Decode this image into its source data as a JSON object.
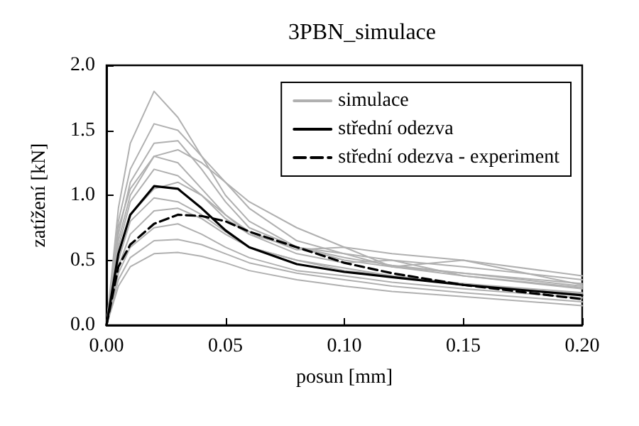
{
  "chart_data": {
    "type": "line",
    "title": "3PBN_simulace",
    "xlabel": "posun [mm]",
    "ylabel": "zatížení [kN]",
    "x": [
      0,
      0.005,
      0.01,
      0.02,
      0.03,
      0.04,
      0.05,
      0.06,
      0.08,
      0.1,
      0.12,
      0.15,
      0.2
    ],
    "xlim": [
      0,
      0.2
    ],
    "ylim": [
      0,
      2
    ],
    "xticks": [
      {
        "value": 0,
        "label": "0.00"
      },
      {
        "value": 0.05,
        "label": "0.05"
      },
      {
        "value": 0.1,
        "label": "0.10"
      },
      {
        "value": 0.15,
        "label": "0.15"
      },
      {
        "value": 0.2,
        "label": "0.20"
      }
    ],
    "yticks": [
      {
        "value": 0,
        "label": "0.0"
      },
      {
        "value": 0.5,
        "label": "0.5"
      },
      {
        "value": 1,
        "label": "1.0"
      },
      {
        "value": 1.5,
        "label": "1.5"
      },
      {
        "value": 2,
        "label": "2.0"
      }
    ],
    "grid": false,
    "legend": "top right",
    "marker": "none",
    "series": [
      {
        "name": "simulace",
        "color": "#b0b0b0",
        "line_style": "solid",
        "values": [
          0,
          0.9,
          1.4,
          1.8,
          1.6,
          1.3,
          1.0,
          0.8,
          0.6,
          0.5,
          0.45,
          0.4,
          0.32
        ]
      },
      {
        "color": "#b0b0b0",
        "line_style": "solid",
        "values": [
          0,
          0.8,
          1.2,
          1.55,
          1.5,
          1.3,
          1.1,
          0.9,
          0.65,
          0.55,
          0.5,
          0.45,
          0.35
        ]
      },
      {
        "color": "#b0b0b0",
        "line_style": "solid",
        "values": [
          0,
          0.7,
          1.1,
          1.4,
          1.42,
          1.2,
          0.95,
          0.75,
          0.6,
          0.52,
          0.46,
          0.4,
          0.3
        ]
      },
      {
        "color": "#b0b0b0",
        "line_style": "solid",
        "values": [
          0,
          0.65,
          1.0,
          1.3,
          1.25,
          1.05,
          0.85,
          0.7,
          0.55,
          0.48,
          0.5,
          0.38,
          0.29
        ]
      },
      {
        "color": "#b0b0b0",
        "line_style": "solid",
        "values": [
          0,
          0.6,
          0.95,
          1.2,
          1.15,
          1.0,
          0.82,
          0.7,
          0.6,
          0.55,
          0.45,
          0.38,
          0.28
        ]
      },
      {
        "color": "#b0b0b0",
        "line_style": "solid",
        "values": [
          0,
          0.55,
          0.85,
          1.05,
          1.1,
          1.0,
          0.85,
          0.72,
          0.58,
          0.6,
          0.45,
          0.5,
          0.31
        ]
      },
      {
        "color": "#b0b0b0",
        "line_style": "solid",
        "values": [
          0,
          0.5,
          0.8,
          0.98,
          0.95,
          0.85,
          0.72,
          0.6,
          0.5,
          0.42,
          0.38,
          0.32,
          0.25
        ]
      },
      {
        "color": "#b0b0b0",
        "line_style": "solid",
        "values": [
          0,
          0.45,
          0.7,
          0.88,
          0.9,
          0.82,
          0.7,
          0.6,
          0.5,
          0.44,
          0.38,
          0.32,
          0.24
        ]
      },
      {
        "color": "#b0b0b0",
        "line_style": "solid",
        "values": [
          0,
          0.4,
          0.6,
          0.75,
          0.78,
          0.7,
          0.6,
          0.52,
          0.42,
          0.38,
          0.33,
          0.28,
          0.21
        ]
      },
      {
        "color": "#b0b0b0",
        "line_style": "solid",
        "values": [
          0,
          0.35,
          0.52,
          0.65,
          0.66,
          0.62,
          0.55,
          0.48,
          0.4,
          0.35,
          0.3,
          0.25,
          0.18
        ]
      },
      {
        "color": "#b0b0b0",
        "line_style": "solid",
        "values": [
          0,
          0.3,
          0.45,
          0.55,
          0.56,
          0.53,
          0.48,
          0.42,
          0.35,
          0.3,
          0.26,
          0.22,
          0.15
        ]
      },
      {
        "color": "#b0b0b0",
        "line_style": "solid",
        "values": [
          0,
          0.75,
          1.05,
          1.3,
          1.35,
          1.25,
          1.1,
          0.95,
          0.75,
          0.6,
          0.55,
          0.5,
          0.38
        ]
      },
      {
        "name": "střední odezva",
        "color": "#000000",
        "line_style": "solid",
        "values": [
          0,
          0.55,
          0.85,
          1.07,
          1.05,
          0.9,
          0.73,
          0.6,
          0.47,
          0.41,
          0.37,
          0.31,
          0.23
        ]
      },
      {
        "name": "střední odezva - experiment",
        "color": "#000000",
        "line_style": "dashed",
        "values": [
          0,
          0.45,
          0.62,
          0.78,
          0.85,
          0.84,
          0.8,
          0.72,
          0.6,
          0.48,
          0.4,
          0.31,
          0.2
        ]
      }
    ]
  }
}
